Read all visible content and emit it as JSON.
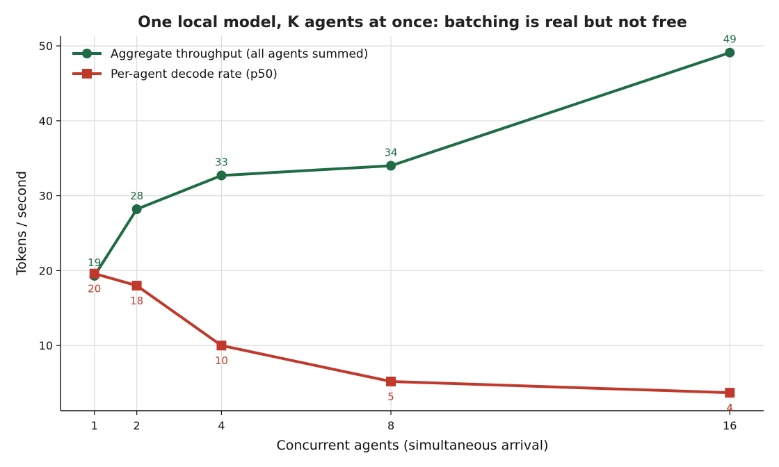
{
  "chart_data": {
    "type": "line",
    "title": "One local model, K agents at once: batching is real but not free",
    "xlabel": "Concurrent agents (simultaneous arrival)",
    "ylabel": "Tokens / second",
    "x": [
      1,
      2,
      4,
      8,
      16
    ],
    "xticks": [
      1,
      2,
      4,
      8,
      16
    ],
    "yticks": [
      10,
      20,
      30,
      40,
      50
    ],
    "xlim": [
      0.2,
      16.8
    ],
    "ylim": [
      1.3,
      51.3
    ],
    "grid": true,
    "legend_position": "top-left",
    "series": [
      {
        "name": "Aggregate throughput (all agents summed)",
        "values": [
          19.3,
          28.2,
          32.7,
          34.0,
          49.1
        ],
        "labels": [
          "19",
          "28",
          "33",
          "34",
          "49"
        ],
        "color": "#1e6b45",
        "marker": "circle",
        "label_position": "above"
      },
      {
        "name": "Per-agent decode rate (p50)",
        "values": [
          19.6,
          18.0,
          10.0,
          5.2,
          3.7
        ],
        "labels": [
          "20",
          "18",
          "10",
          "5",
          "4"
        ],
        "color": "#c0392b",
        "marker": "square",
        "label_position": "below"
      }
    ]
  }
}
